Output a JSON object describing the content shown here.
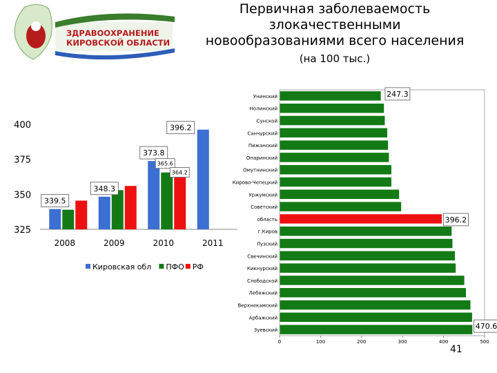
{
  "header": {
    "title_lines": [
      "Первичная заболеваемость",
      "злокачественными",
      "новообразованиями всего населения"
    ],
    "subtitle": "(на 100 тыс.)"
  },
  "logo": {
    "line1": "ЗДРАВООХРАНЕНИЕ",
    "line2": "КИРОВСКОЙ ОБЛАСТИ"
  },
  "page_number": "41",
  "colors": {
    "blue": "#3b6fd1",
    "green": "#137a16",
    "red": "#ee1111"
  },
  "chart_data": [
    {
      "type": "bar",
      "categories": [
        "2008",
        "2009",
        "2010",
        "2011"
      ],
      "series": [
        {
          "name": "Кировская обл",
          "values": [
            339.5,
            348.3,
            373.8,
            396.2
          ]
        },
        {
          "name": "ПФО",
          "values": [
            339,
            353,
            365.6,
            null
          ]
        },
        {
          "name": "РФ",
          "values": [
            345.5,
            356,
            364.2,
            null
          ]
        }
      ],
      "data_labels": [
        {
          "series": 0,
          "index": 0,
          "text": "339.5"
        },
        {
          "series": 0,
          "index": 1,
          "text": "348.3"
        },
        {
          "series": 0,
          "index": 2,
          "text": "373.8"
        },
        {
          "series": 1,
          "index": 2,
          "text": "365.6"
        },
        {
          "series": 2,
          "index": 2,
          "text": "364.2"
        },
        {
          "series": 0,
          "index": 3,
          "text": "396.2"
        }
      ],
      "yticks": [
        "325",
        "350",
        "375",
        "400"
      ],
      "ylim": [
        325,
        400
      ],
      "legend_position": "bottom"
    },
    {
      "type": "bar",
      "orientation": "horizontal",
      "categories": [
        "Унинский",
        "Нолинский",
        "Сунской",
        "Санчурский",
        "Пижанский",
        "Опаринский",
        "Омутнинский",
        "Кирово-Чепецкий",
        "Уржумский",
        "Советский",
        "область",
        "г.Киров",
        "Лузский",
        "Свечинский",
        "Кикнурский",
        "Слободской",
        "Лебяжский",
        "Верхнекамский",
        "Арбажский",
        "Зуевский"
      ],
      "values": [
        247.3,
        255,
        257,
        263,
        265,
        267,
        273,
        273,
        292,
        297,
        396.2,
        420,
        422,
        428,
        430,
        451,
        455,
        466,
        470,
        470.6
      ],
      "highlight_index": 10,
      "data_labels": [
        {
          "index": 0,
          "text": "247.3"
        },
        {
          "index": 10,
          "text": "396.2"
        },
        {
          "index": 19,
          "text": "470.6"
        }
      ],
      "xticks": [
        "0",
        "100",
        "200",
        "300",
        "400",
        "500"
      ],
      "xlim": [
        0,
        500
      ]
    }
  ]
}
